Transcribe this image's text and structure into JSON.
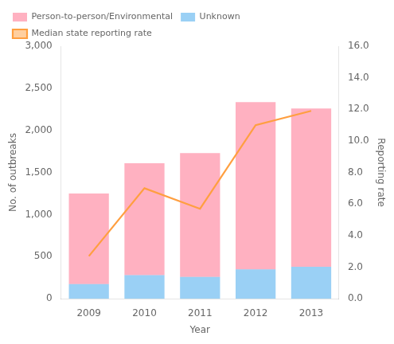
{
  "chart_data": {
    "type": "bar",
    "xlabel": "Year",
    "ylabel": "No. of outbreaks",
    "y2label": "Reporting rate",
    "categories": [
      2009,
      2010,
      2011,
      2012,
      2013
    ],
    "stacked": true,
    "grid": false,
    "legend": "upper left",
    "series": [
      {
        "name": "Person-to-person/Environmental",
        "values": [
          1075,
          1330,
          1470,
          1985,
          1880
        ]
      },
      {
        "name": "Unknown",
        "values": [
          175,
          280,
          260,
          350,
          380
        ]
      },
      {
        "name": "Median state reporting rate",
        "type": "line",
        "axis": "y2",
        "marker": "none",
        "line_style": "solid",
        "values": [
          2.7,
          7.0,
          5.7,
          11.0,
          11.9
        ]
      }
    ],
    "ylim": [
      0,
      3000
    ],
    "yticks": [
      0,
      500,
      {
        "value": 1000,
        "label": "1,000"
      },
      {
        "value": 1500,
        "label": "1,500"
      },
      {
        "value": 2000,
        "label": "2,000"
      },
      {
        "value": 2500,
        "label": "2,500"
      },
      {
        "value": 3000,
        "label": "3,000"
      }
    ],
    "y2lim": [
      0,
      16.0
    ],
    "y2ticks": [
      {
        "value": 0.0,
        "label": "0.0"
      },
      {
        "value": 2.0,
        "label": "2.0"
      },
      {
        "value": 4.0,
        "label": "4.0"
      },
      {
        "value": 6.0,
        "label": "6.0"
      },
      {
        "value": 8.0,
        "label": "8.0"
      },
      {
        "value": 10.0,
        "label": "10.0"
      },
      {
        "value": 12.0,
        "label": "12.0"
      },
      {
        "value": 14.0,
        "label": "14.0"
      },
      {
        "value": 16.0,
        "label": "16.0"
      }
    ]
  }
}
